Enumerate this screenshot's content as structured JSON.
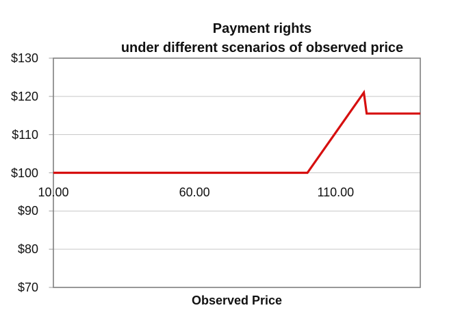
{
  "title": {
    "line1": "Payment rights",
    "line2": "under different scenarios of observed price"
  },
  "x_axis_title": "Observed Price",
  "colors": {
    "line": "#d60f0f",
    "grid": "#c6c6c6",
    "border": "#7f7f7f",
    "tick": "#adadad",
    "text": "#111111",
    "background": "#ffffff"
  },
  "chart_data": {
    "type": "line",
    "title": "Payment rights under different scenarios of observed price",
    "xlabel": "Observed Price",
    "ylabel": "",
    "xlim": [
      10,
      140
    ],
    "ylim": [
      70,
      130
    ],
    "grid": "horizontal",
    "legend": "none",
    "x_labels_at_y": 100,
    "y_ticks": [
      {
        "value": 130,
        "label": "$130"
      },
      {
        "value": 120,
        "label": "$120"
      },
      {
        "value": 110,
        "label": "$110"
      },
      {
        "value": 100,
        "label": "$100"
      },
      {
        "value": 90,
        "label": "$90"
      },
      {
        "value": 80,
        "label": "$80"
      },
      {
        "value": 70,
        "label": "$70"
      }
    ],
    "x_ticks": [
      {
        "value": 10,
        "label": "10.00"
      },
      {
        "value": 60,
        "label": "60.00"
      },
      {
        "value": 110,
        "label": "110.00"
      }
    ],
    "series": [
      {
        "name": "Payment rights",
        "color": "#d60f0f",
        "points": [
          [
            10,
            100
          ],
          [
            100,
            100
          ],
          [
            120,
            121
          ],
          [
            121,
            115.5
          ],
          [
            140,
            115.5
          ]
        ]
      }
    ]
  }
}
